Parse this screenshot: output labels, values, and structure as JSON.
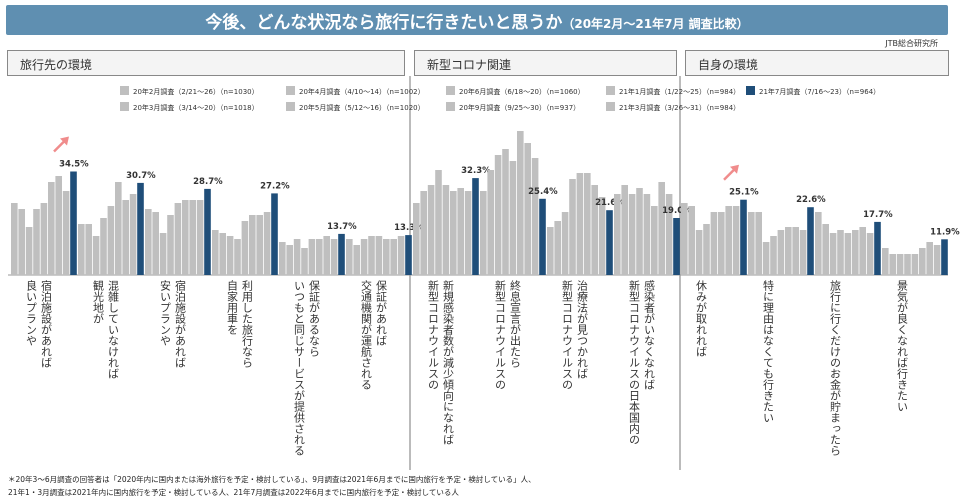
{
  "title": {
    "main": "今後、どんな状況なら旅行に行きたいと思うか",
    "sub": "（20年2月～21年7月 調査比較）"
  },
  "source": "JTB総合研究所",
  "sections": [
    "旅行先の環境",
    "新型コロナ関連",
    "自身の環境"
  ],
  "footnotes": [
    "＊20年3～6月調査の回答者は「2020年内に国内または海外旅行を予定・検討している」、9月調査は2021年6月までに国内旅行を予定・検討している」人、",
    "21年1・3月調査は2021年内に国内旅行を予定・検討している人、21年7月調査は2022年6月までに国内旅行を予定・検討している人"
  ],
  "colors": {
    "past": "#bfbfbf",
    "latest": "#1f4e79",
    "arrow": "#f08c8c",
    "title_bg": "#5f8fb1"
  },
  "chart_data": {
    "type": "bar",
    "title": "今後、どんな状況なら旅行に行きたいと思うか",
    "ylabel": "",
    "ylim": [
      0,
      55
    ],
    "series": [
      {
        "name": "20年2月調査（2/21～26）（n=1030）",
        "values": [
          24,
          17,
          22,
          15,
          11,
          12,
          24,
          28,
          16,
          27,
          24,
          21,
          21,
          9
        ]
      },
      {
        "name": "20年3月調査（3/14～20）（n=1018）",
        "values": [
          22,
          17,
          21,
          14,
          10,
          10,
          28,
          35,
          18,
          30,
          23,
          21,
          17,
          7
        ]
      },
      {
        "name": "20年4月調査（4/10～14）（n=1002）",
        "values": [
          16,
          13,
          14,
          13,
          12,
          12,
          30,
          40,
          21,
          27,
          15,
          11,
          14,
          7
        ]
      },
      {
        "name": "20年5月調査（5/12～16）（n=1020）",
        "values": [
          22,
          19,
          20,
          12,
          9,
          13,
          35,
          42,
          32,
          29,
          17,
          13,
          15,
          7
        ]
      },
      {
        "name": "20年6月調査（6/18～20）（n=1060）",
        "values": [
          24,
          23,
          24,
          18,
          12,
          13,
          30,
          38,
          34,
          27,
          21,
          15,
          14,
          7
        ]
      },
      {
        "name": "20年9月調査（9/25～30）（n=937）",
        "values": [
          31,
          31,
          25,
          20,
          12,
          12,
          28,
          48,
          34,
          23,
          21,
          16,
          15,
          9
        ]
      },
      {
        "name": "21年1月調査（1/22～25）（n=984）",
        "values": [
          33,
          25,
          25,
          20,
          13,
          12,
          29,
          44,
          30,
          31,
          23,
          16,
          16,
          11
        ]
      },
      {
        "name": "21年3月調査（3/26～31）（n=984）",
        "values": [
          28,
          27,
          25,
          21,
          12,
          13,
          28,
          39,
          26,
          27,
          23,
          15,
          14,
          10
        ]
      },
      {
        "name": "21年7月調査（7/16～23）（n=964）",
        "values": [
          34.5,
          30.7,
          28.7,
          27.2,
          13.7,
          13.3,
          32.3,
          25.4,
          21.6,
          19.0,
          25.1,
          22.6,
          17.7,
          11.9
        ]
      }
    ],
    "categories": [
      "良いプランや宿泊施設があれば",
      "観光地が混雑していなければ",
      "安いプランや宿泊施設があれば",
      "自家用車を利用した旅行なら",
      "いつもと同じサービスが提供される保証があるなら",
      "交通機関が運航される保証があれば",
      "新型コロナウイルスの新規感染者数が減少傾向になれば",
      "新型コロナウイルスの終息宣言が出たら",
      "新型コロナウイルスの治療法が見つかれば",
      "新型コロナウイルスの日本国内の感染者がいなくなれば",
      "休みが取れれば",
      "特に理由はなくても行きたい",
      "旅行に行くだけのお金が貯まったら",
      "景気が良くなれば行きたい"
    ],
    "data_labels": [
      "34.5%",
      "30.7%",
      "28.7%",
      "27.2%",
      "13.7%",
      "13.3%",
      "32.3%",
      "25.4%",
      "21.6%",
      "19.0%",
      "25.1%",
      "22.6%",
      "17.7%",
      "11.9%"
    ],
    "category_label_lines": [
      [
        "良いプランや",
        "宿泊施設があれば"
      ],
      [
        "観光地が",
        "混雑していなければ"
      ],
      [
        "安いプランや",
        "宿泊施設があれば"
      ],
      [
        "自家用車を",
        "利用した旅行なら"
      ],
      [
        "いつもと同じサービスが提供される",
        "保証があるなら"
      ],
      [
        "交通機関が運航される",
        "保証があれば"
      ],
      [
        "新型コロナウイルスの",
        "新規感染者数が減少傾向になれば"
      ],
      [
        "新型コロナウイルスの",
        "終息宣言が出たら"
      ],
      [
        "新型コロナウイルスの",
        "治療法が見つかれば"
      ],
      [
        "新型コロナウイルスの日本国内の",
        "感染者がいなくなれば"
      ],
      [
        "休みが取れれば"
      ],
      [
        "特に理由はなくても行きたい"
      ],
      [
        "旅行に行くだけのお金が貯まったら"
      ],
      [
        "景気が良くなれば行きたい"
      ]
    ],
    "rising_arrows_on": [
      "良いプランや宿泊施設があれば",
      "休みが取れれば"
    ]
  }
}
